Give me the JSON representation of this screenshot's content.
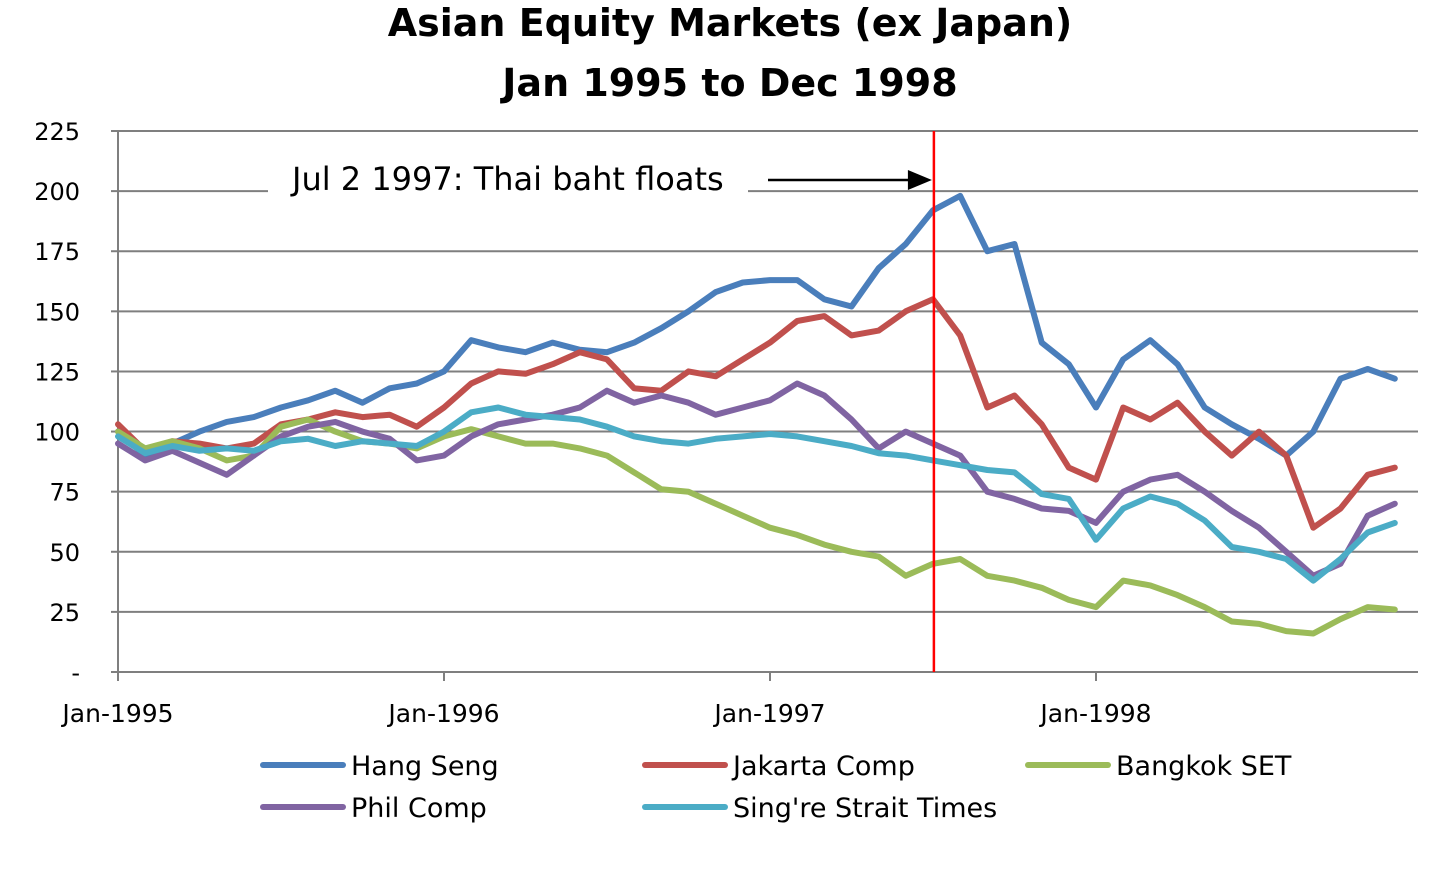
{
  "chart_data": {
    "type": "line",
    "title": "Asian Equity Markets (ex Japan)",
    "subtitle": "Jan 1995 to Dec 1998",
    "xlabel": "",
    "ylabel": "",
    "ylim": [
      0,
      225
    ],
    "xlim": [
      "1995-01",
      "1998-12"
    ],
    "y_ticks": [
      "-",
      "25",
      "50",
      "75",
      "100",
      "125",
      "150",
      "175",
      "200",
      "225"
    ],
    "x_ticks": [
      "Jan-1995",
      "Jan-1996",
      "Jan-1997",
      "Jan-1998"
    ],
    "grid": true,
    "legend_position": "bottom",
    "annotation": {
      "text": "Jul 2 1997: Thai baht floats",
      "date": "1997-07-02"
    },
    "series": [
      {
        "name": "Hang Seng",
        "color": "#4a7ebb",
        "points": [
          [
            "1995-01",
            100
          ],
          [
            "1995-02",
            90
          ],
          [
            "1995-03",
            95
          ],
          [
            "1995-04",
            100
          ],
          [
            "1995-05",
            104
          ],
          [
            "1995-06",
            106
          ],
          [
            "1995-07",
            110
          ],
          [
            "1995-08",
            113
          ],
          [
            "1995-09",
            117
          ],
          [
            "1995-10",
            112
          ],
          [
            "1995-11",
            118
          ],
          [
            "1995-12",
            120
          ],
          [
            "1996-01",
            125
          ],
          [
            "1996-02",
            138
          ],
          [
            "1996-03",
            135
          ],
          [
            "1996-04",
            133
          ],
          [
            "1996-05",
            137
          ],
          [
            "1996-06",
            134
          ],
          [
            "1996-07",
            133
          ],
          [
            "1996-08",
            137
          ],
          [
            "1996-09",
            143
          ],
          [
            "1996-10",
            150
          ],
          [
            "1996-11",
            158
          ],
          [
            "1996-12",
            162
          ],
          [
            "1997-01",
            163
          ],
          [
            "1997-02",
            163
          ],
          [
            "1997-03",
            155
          ],
          [
            "1997-04",
            152
          ],
          [
            "1997-05",
            168
          ],
          [
            "1997-06",
            178
          ],
          [
            "1997-07",
            192
          ],
          [
            "1997-08",
            198
          ],
          [
            "1997-09",
            175
          ],
          [
            "1997-10",
            178
          ],
          [
            "1997-11",
            137
          ],
          [
            "1997-12",
            128
          ],
          [
            "1998-01",
            110
          ],
          [
            "1998-02",
            130
          ],
          [
            "1998-03",
            138
          ],
          [
            "1998-04",
            128
          ],
          [
            "1998-05",
            110
          ],
          [
            "1998-06",
            103
          ],
          [
            "1998-07",
            97
          ],
          [
            "1998-08",
            90
          ],
          [
            "1998-09",
            100
          ],
          [
            "1998-10",
            122
          ],
          [
            "1998-11",
            126
          ],
          [
            "1998-12",
            122
          ]
        ]
      },
      {
        "name": "Jakarta Comp",
        "color": "#c0504d",
        "points": [
          [
            "1995-01",
            103
          ],
          [
            "1995-02",
            92
          ],
          [
            "1995-03",
            96
          ],
          [
            "1995-04",
            95
          ],
          [
            "1995-05",
            93
          ],
          [
            "1995-06",
            95
          ],
          [
            "1995-07",
            103
          ],
          [
            "1995-08",
            105
          ],
          [
            "1995-09",
            108
          ],
          [
            "1995-10",
            106
          ],
          [
            "1995-11",
            107
          ],
          [
            "1995-12",
            102
          ],
          [
            "1996-01",
            110
          ],
          [
            "1996-02",
            120
          ],
          [
            "1996-03",
            125
          ],
          [
            "1996-04",
            124
          ],
          [
            "1996-05",
            128
          ],
          [
            "1996-06",
            133
          ],
          [
            "1996-07",
            130
          ],
          [
            "1996-08",
            118
          ],
          [
            "1996-09",
            117
          ],
          [
            "1996-10",
            125
          ],
          [
            "1996-11",
            123
          ],
          [
            "1996-12",
            130
          ],
          [
            "1997-01",
            137
          ],
          [
            "1997-02",
            146
          ],
          [
            "1997-03",
            148
          ],
          [
            "1997-04",
            140
          ],
          [
            "1997-05",
            142
          ],
          [
            "1997-06",
            150
          ],
          [
            "1997-07",
            155
          ],
          [
            "1997-08",
            140
          ],
          [
            "1997-09",
            110
          ],
          [
            "1997-10",
            115
          ],
          [
            "1997-11",
            103
          ],
          [
            "1997-12",
            85
          ],
          [
            "1998-01",
            80
          ],
          [
            "1998-02",
            110
          ],
          [
            "1998-03",
            105
          ],
          [
            "1998-04",
            112
          ],
          [
            "1998-05",
            100
          ],
          [
            "1998-06",
            90
          ],
          [
            "1998-07",
            100
          ],
          [
            "1998-08",
            90
          ],
          [
            "1998-09",
            60
          ],
          [
            "1998-10",
            68
          ],
          [
            "1998-11",
            82
          ],
          [
            "1998-12",
            85
          ]
        ]
      },
      {
        "name": "Bangkok SET",
        "color": "#9bbb59",
        "points": [
          [
            "1995-01",
            100
          ],
          [
            "1995-02",
            93
          ],
          [
            "1995-03",
            96
          ],
          [
            "1995-04",
            93
          ],
          [
            "1995-05",
            88
          ],
          [
            "1995-06",
            90
          ],
          [
            "1995-07",
            102
          ],
          [
            "1995-08",
            105
          ],
          [
            "1995-09",
            100
          ],
          [
            "1995-10",
            96
          ],
          [
            "1995-11",
            95
          ],
          [
            "1995-12",
            93
          ],
          [
            "1996-01",
            98
          ],
          [
            "1996-02",
            101
          ],
          [
            "1996-03",
            98
          ],
          [
            "1996-04",
            95
          ],
          [
            "1996-05",
            95
          ],
          [
            "1996-06",
            93
          ],
          [
            "1996-07",
            90
          ],
          [
            "1996-08",
            83
          ],
          [
            "1996-09",
            76
          ],
          [
            "1996-10",
            75
          ],
          [
            "1996-11",
            70
          ],
          [
            "1996-12",
            65
          ],
          [
            "1997-01",
            60
          ],
          [
            "1997-02",
            57
          ],
          [
            "1997-03",
            53
          ],
          [
            "1997-04",
            50
          ],
          [
            "1997-05",
            48
          ],
          [
            "1997-06",
            40
          ],
          [
            "1997-07",
            45
          ],
          [
            "1997-08",
            47
          ],
          [
            "1997-09",
            40
          ],
          [
            "1997-10",
            38
          ],
          [
            "1997-11",
            35
          ],
          [
            "1997-12",
            30
          ],
          [
            "1998-01",
            27
          ],
          [
            "1998-02",
            38
          ],
          [
            "1998-03",
            36
          ],
          [
            "1998-04",
            32
          ],
          [
            "1998-05",
            27
          ],
          [
            "1998-06",
            21
          ],
          [
            "1998-07",
            20
          ],
          [
            "1998-08",
            17
          ],
          [
            "1998-09",
            16
          ],
          [
            "1998-10",
            22
          ],
          [
            "1998-11",
            27
          ],
          [
            "1998-12",
            26
          ]
        ]
      },
      {
        "name": "Phil Comp",
        "color": "#8064a2",
        "points": [
          [
            "1995-01",
            95
          ],
          [
            "1995-02",
            88
          ],
          [
            "1995-03",
            92
          ],
          [
            "1995-04",
            87
          ],
          [
            "1995-05",
            82
          ],
          [
            "1995-06",
            90
          ],
          [
            "1995-07",
            98
          ],
          [
            "1995-08",
            102
          ],
          [
            "1995-09",
            104
          ],
          [
            "1995-10",
            100
          ],
          [
            "1995-11",
            97
          ],
          [
            "1995-12",
            88
          ],
          [
            "1996-01",
            90
          ],
          [
            "1996-02",
            98
          ],
          [
            "1996-03",
            103
          ],
          [
            "1996-04",
            105
          ],
          [
            "1996-05",
            107
          ],
          [
            "1996-06",
            110
          ],
          [
            "1996-07",
            117
          ],
          [
            "1996-08",
            112
          ],
          [
            "1996-09",
            115
          ],
          [
            "1996-10",
            112
          ],
          [
            "1996-11",
            107
          ],
          [
            "1996-12",
            110
          ],
          [
            "1997-01",
            113
          ],
          [
            "1997-02",
            120
          ],
          [
            "1997-03",
            115
          ],
          [
            "1997-04",
            105
          ],
          [
            "1997-05",
            93
          ],
          [
            "1997-06",
            100
          ],
          [
            "1997-07",
            95
          ],
          [
            "1997-08",
            90
          ],
          [
            "1997-09",
            75
          ],
          [
            "1997-10",
            72
          ],
          [
            "1997-11",
            68
          ],
          [
            "1997-12",
            67
          ],
          [
            "1998-01",
            62
          ],
          [
            "1998-02",
            75
          ],
          [
            "1998-03",
            80
          ],
          [
            "1998-04",
            82
          ],
          [
            "1998-05",
            75
          ],
          [
            "1998-06",
            67
          ],
          [
            "1998-07",
            60
          ],
          [
            "1998-08",
            50
          ],
          [
            "1998-09",
            40
          ],
          [
            "1998-10",
            45
          ],
          [
            "1998-11",
            65
          ],
          [
            "1998-12",
            70
          ]
        ]
      },
      {
        "name": "Sing're Strait Times",
        "color": "#4bacc6",
        "points": [
          [
            "1995-01",
            98
          ],
          [
            "1995-02",
            91
          ],
          [
            "1995-03",
            94
          ],
          [
            "1995-04",
            92
          ],
          [
            "1995-05",
            93
          ],
          [
            "1995-06",
            92
          ],
          [
            "1995-07",
            96
          ],
          [
            "1995-08",
            97
          ],
          [
            "1995-09",
            94
          ],
          [
            "1995-10",
            96
          ],
          [
            "1995-11",
            95
          ],
          [
            "1995-12",
            94
          ],
          [
            "1996-01",
            100
          ],
          [
            "1996-02",
            108
          ],
          [
            "1996-03",
            110
          ],
          [
            "1996-04",
            107
          ],
          [
            "1996-05",
            106
          ],
          [
            "1996-06",
            105
          ],
          [
            "1996-07",
            102
          ],
          [
            "1996-08",
            98
          ],
          [
            "1996-09",
            96
          ],
          [
            "1996-10",
            95
          ],
          [
            "1996-11",
            97
          ],
          [
            "1996-12",
            98
          ],
          [
            "1997-01",
            99
          ],
          [
            "1997-02",
            98
          ],
          [
            "1997-03",
            96
          ],
          [
            "1997-04",
            94
          ],
          [
            "1997-05",
            91
          ],
          [
            "1997-06",
            90
          ],
          [
            "1997-07",
            88
          ],
          [
            "1997-08",
            86
          ],
          [
            "1997-09",
            84
          ],
          [
            "1997-10",
            83
          ],
          [
            "1997-11",
            74
          ],
          [
            "1997-12",
            72
          ],
          [
            "1998-01",
            55
          ],
          [
            "1998-02",
            68
          ],
          [
            "1998-03",
            73
          ],
          [
            "1998-04",
            70
          ],
          [
            "1998-05",
            63
          ],
          [
            "1998-06",
            52
          ],
          [
            "1998-07",
            50
          ],
          [
            "1998-08",
            47
          ],
          [
            "1998-09",
            38
          ],
          [
            "1998-10",
            47
          ],
          [
            "1998-11",
            58
          ],
          [
            "1998-12",
            62
          ]
        ]
      }
    ]
  }
}
